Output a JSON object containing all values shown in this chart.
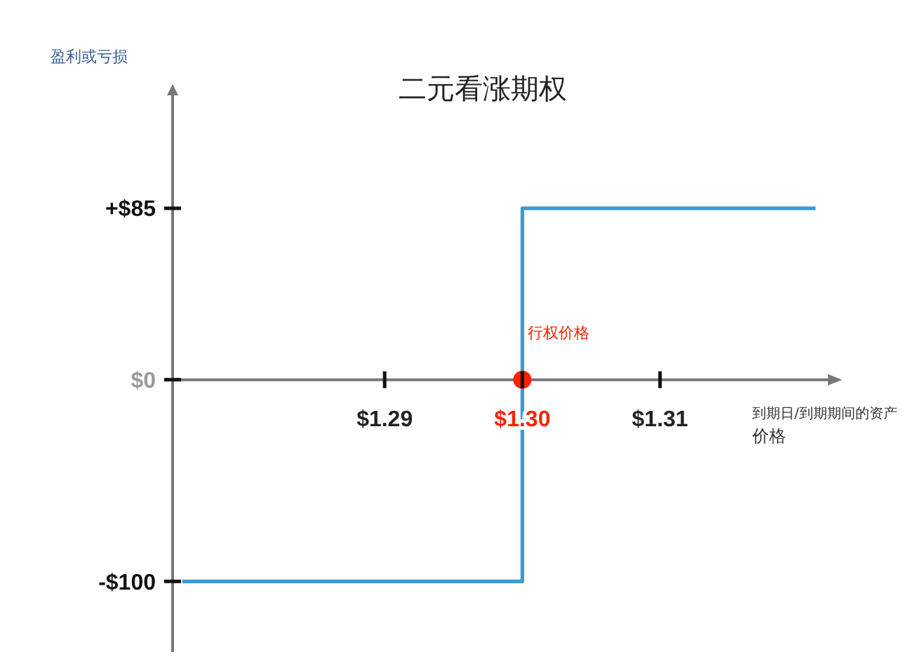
{
  "chart_data": {
    "type": "step",
    "title": "二元看涨期权",
    "ylabel": "盈利或亏损",
    "xlabel": "到期日/到期期间的资产价格",
    "annotations": [
      {
        "text": "行权价格",
        "x": 1.3,
        "y": 0
      }
    ],
    "x": [
      1.2753,
      1.3,
      1.3213
    ],
    "series": [
      {
        "color": "#3a9ad9",
        "values": [
          -100,
          85,
          85
        ],
        "marker": "none"
      },
      {
        "type": "scatter",
        "color": "#ff2200",
        "x": [
          1.3
        ],
        "values": [
          0
        ],
        "marker": "circle"
      }
    ],
    "xlim": [
      1.2746,
      1.3222
    ],
    "ylim": [
      -135,
      141
    ],
    "xticks": [
      {
        "value": 1.29,
        "label": "$1.29"
      },
      {
        "value": 1.3,
        "label": "$1.30"
      },
      {
        "value": 1.31,
        "label": "$1.31"
      }
    ],
    "yticks": [
      {
        "value": 85,
        "label": "+$85"
      },
      {
        "value": 0,
        "label": "$0"
      },
      {
        "value": -100,
        "label": "-$100"
      }
    ],
    "grid": false,
    "legend": false
  }
}
